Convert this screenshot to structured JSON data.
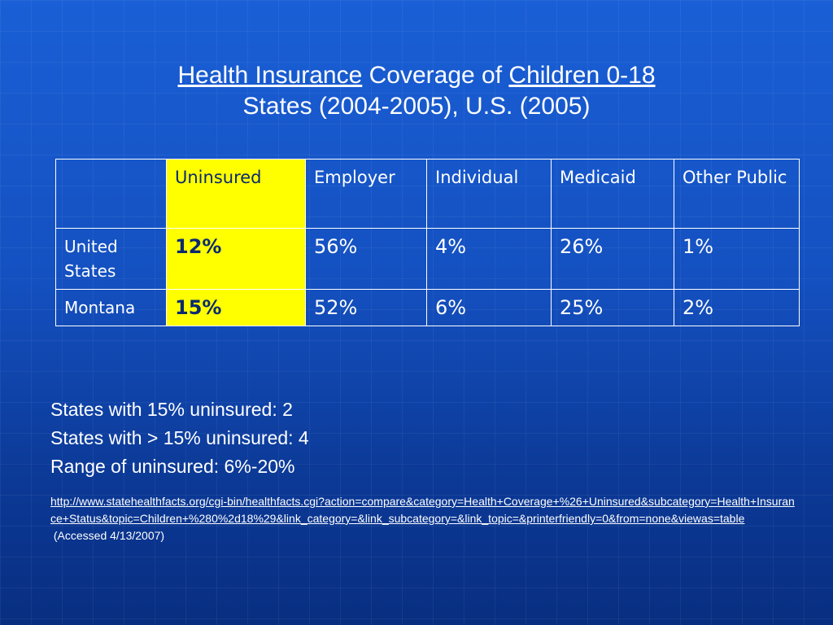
{
  "title": {
    "line1_part1": "Health Insurance",
    "line1_part2": " Coverage of ",
    "line1_part3": "Children 0-18",
    "line2": "States (2004-2005), U.S. (2005)"
  },
  "table": {
    "headers": [
      "",
      "Uninsured",
      "Employer",
      "Individual",
      "Medicaid",
      "Other Public"
    ],
    "rows": [
      {
        "label": "United States",
        "cells": [
          "12%",
          "56%",
          "4%",
          "26%",
          "1%"
        ]
      },
      {
        "label": "Montana",
        "cells": [
          "15%",
          "52%",
          "6%",
          "25%",
          "2%"
        ]
      }
    ]
  },
  "stats": [
    "States with 15% uninsured: 2",
    "States with > 15% uninsured: 4",
    "Range of uninsured: 6%-20%"
  ],
  "source": {
    "url": "http://www.statehealthfacts.org/cgi-bin/healthfacts.cgi?action=compare&category=Health+Coverage+%26+Uninsured&subcategory=Health+Insurance+Status&topic=Children+%280%2d18%29&link_category=&link_subcategory=&link_topic=&printerfriendly=0&from=none&viewas=table",
    "accessed": " (Accessed 4/13/2007)"
  },
  "colors": {
    "background": "#1450c0",
    "highlight": "#ffff00",
    "highlight_text": "#0a2a70",
    "text": "#ffffff"
  }
}
